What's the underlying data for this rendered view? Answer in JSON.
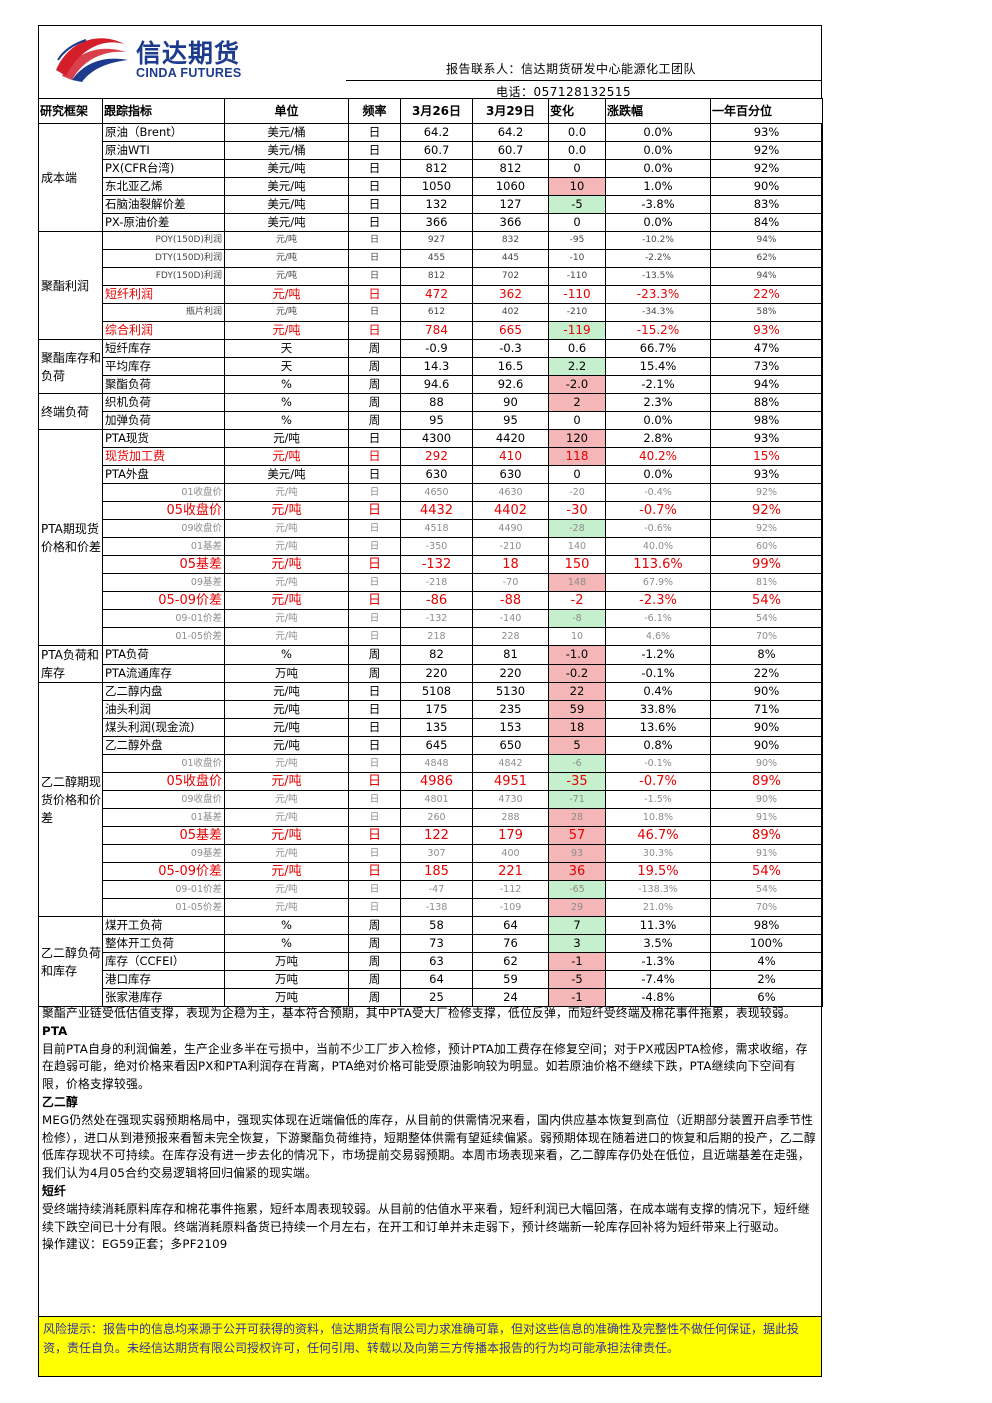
{
  "header": {
    "logo_cn": "信达期货",
    "logo_en": "CINDA FUTURES",
    "contact": "报告联系人：信达期货研发中心能源化工团队",
    "phone": "电话：057128132515"
  },
  "table": {
    "columns": [
      "研究框架",
      "跟踪指标",
      "单位",
      "频率",
      "3月26日",
      "3月29日",
      "变化",
      "涨跌幅",
      "一年百分位"
    ],
    "groups": [
      {
        "category": "成本端",
        "rows": [
          {
            "name": "原油（Brent）",
            "unit": "美元/桶",
            "freq": "日",
            "v1": "64.2",
            "v2": "64.2",
            "chg": "0.0",
            "pct": "0.0%",
            "rank": "93%",
            "style": "n",
            "chg_color": ""
          },
          {
            "name": "原油WTI",
            "unit": "美元/桶",
            "freq": "日",
            "v1": "60.7",
            "v2": "60.7",
            "chg": "0.0",
            "pct": "0.0%",
            "rank": "92%",
            "style": "n",
            "chg_color": ""
          },
          {
            "name": "PX(CFR台湾)",
            "unit": "美元/吨",
            "freq": "日",
            "v1": "812",
            "v2": "812",
            "chg": "0",
            "pct": "0.0%",
            "rank": "92%",
            "style": "n",
            "chg_color": ""
          },
          {
            "name": "东北亚乙烯",
            "unit": "美元/吨",
            "freq": "日",
            "v1": "1050",
            "v2": "1060",
            "chg": "10",
            "pct": "1.0%",
            "rank": "90%",
            "style": "n",
            "chg_color": "pos"
          },
          {
            "name": "石脑油裂解价差",
            "unit": "美元/吨",
            "freq": "日",
            "v1": "132",
            "v2": "127",
            "chg": "-5",
            "pct": "-3.8%",
            "rank": "83%",
            "style": "n",
            "chg_color": "neg"
          },
          {
            "name": "PX-原油价差",
            "unit": "美元/吨",
            "freq": "日",
            "v1": "366",
            "v2": "366",
            "chg": "0",
            "pct": "0.0%",
            "rank": "84%",
            "style": "n",
            "chg_color": ""
          }
        ]
      },
      {
        "category": "聚酯利润",
        "rows": [
          {
            "name": "POY(150D)利润",
            "unit": "元/吨",
            "freq": "日",
            "v1": "927",
            "v2": "832",
            "chg": "-95",
            "pct": "-10.2%",
            "rank": "94%",
            "style": "sm",
            "chg_color": "",
            "align": "r"
          },
          {
            "name": "DTY(150D)利润",
            "unit": "元/吨",
            "freq": "日",
            "v1": "455",
            "v2": "445",
            "chg": "-10",
            "pct": "-2.2%",
            "rank": "62%",
            "style": "sm",
            "chg_color": "",
            "align": "r"
          },
          {
            "name": "FDY(150D)利润",
            "unit": "元/吨",
            "freq": "日",
            "v1": "812",
            "v2": "702",
            "chg": "-110",
            "pct": "-13.5%",
            "rank": "94%",
            "style": "sm",
            "chg_color": "",
            "align": "r"
          },
          {
            "name": "短纤利润",
            "unit": "元/吨",
            "freq": "日",
            "v1": "472",
            "v2": "362",
            "chg": "-110",
            "pct": "-23.3%",
            "rank": "22%",
            "style": "rd",
            "chg_color": ""
          },
          {
            "name": "瓶片利润",
            "unit": "元/吨",
            "freq": "日",
            "v1": "612",
            "v2": "402",
            "chg": "-210",
            "pct": "-34.3%",
            "rank": "58%",
            "style": "sm",
            "chg_color": "",
            "align": "r"
          },
          {
            "name": "综合利润",
            "unit": "元/吨",
            "freq": "日",
            "v1": "784",
            "v2": "665",
            "chg": "-119",
            "pct": "-15.2%",
            "rank": "93%",
            "style": "rd",
            "chg_color": "neg"
          }
        ]
      },
      {
        "category": "聚酯库存和负荷",
        "rows": [
          {
            "name": "短纤库存",
            "unit": "天",
            "freq": "周",
            "v1": "-0.9",
            "v2": "-0.3",
            "chg": "0.6",
            "pct": "66.7%",
            "rank": "47%",
            "style": "n",
            "chg_color": ""
          },
          {
            "name": "平均库存",
            "unit": "天",
            "freq": "周",
            "v1": "14.3",
            "v2": "16.5",
            "chg": "2.2",
            "pct": "15.4%",
            "rank": "73%",
            "style": "n",
            "chg_color": "neg"
          },
          {
            "name": "聚酯负荷",
            "unit": "%",
            "freq": "周",
            "v1": "94.6",
            "v2": "92.6",
            "chg": "-2.0",
            "pct": "-2.1%",
            "rank": "94%",
            "style": "n",
            "chg_color": "pos"
          }
        ]
      },
      {
        "category": "终端负荷",
        "rows": [
          {
            "name": "织机负荷",
            "unit": "%",
            "freq": "周",
            "v1": "88",
            "v2": "90",
            "chg": "2",
            "pct": "2.3%",
            "rank": "88%",
            "style": "n",
            "chg_color": "pos"
          },
          {
            "name": "加弹负荷",
            "unit": "%",
            "freq": "周",
            "v1": "95",
            "v2": "95",
            "chg": "0",
            "pct": "0.0%",
            "rank": "98%",
            "style": "n",
            "chg_color": ""
          }
        ]
      },
      {
        "category": "PTA期现货价格和价差",
        "rows": [
          {
            "name": "PTA现货",
            "unit": "元/吨",
            "freq": "日",
            "v1": "4300",
            "v2": "4420",
            "chg": "120",
            "pct": "2.8%",
            "rank": "93%",
            "style": "n",
            "chg_color": "pos"
          },
          {
            "name": "现货加工费",
            "unit": "元/吨",
            "freq": "日",
            "v1": "292",
            "v2": "410",
            "chg": "118",
            "pct": "40.2%",
            "rank": "15%",
            "style": "rd",
            "chg_color": "pos"
          },
          {
            "name": "PTA外盘",
            "unit": "美元/吨",
            "freq": "日",
            "v1": "630",
            "v2": "630",
            "chg": "0",
            "pct": "0.0%",
            "rank": "93%",
            "style": "n",
            "chg_color": ""
          },
          {
            "name": "01收盘价",
            "unit": "元/吨",
            "freq": "日",
            "v1": "4650",
            "v2": "4630",
            "chg": "-20",
            "pct": "-0.4%",
            "rank": "92%",
            "style": "gy",
            "chg_color": "",
            "align": "r"
          },
          {
            "name": "05收盘价",
            "unit": "元/吨",
            "freq": "日",
            "v1": "4432",
            "v2": "4402",
            "chg": "-30",
            "pct": "-0.7%",
            "rank": "92%",
            "style": "rb",
            "chg_color": "",
            "align": "r"
          },
          {
            "name": "09收盘价",
            "unit": "元/吨",
            "freq": "日",
            "v1": "4518",
            "v2": "4490",
            "chg": "-28",
            "pct": "-0.6%",
            "rank": "92%",
            "style": "gy",
            "chg_color": "neg",
            "align": "r"
          },
          {
            "name": "01基差",
            "unit": "元/吨",
            "freq": "日",
            "v1": "-350",
            "v2": "-210",
            "chg": "140",
            "pct": "40.0%",
            "rank": "60%",
            "style": "gy",
            "chg_color": "",
            "align": "r"
          },
          {
            "name": "05基差",
            "unit": "元/吨",
            "freq": "日",
            "v1": "-132",
            "v2": "18",
            "chg": "150",
            "pct": "113.6%",
            "rank": "99%",
            "style": "rb",
            "chg_color": "",
            "align": "r"
          },
          {
            "name": "09基差",
            "unit": "元/吨",
            "freq": "日",
            "v1": "-218",
            "v2": "-70",
            "chg": "148",
            "pct": "67.9%",
            "rank": "81%",
            "style": "gy",
            "chg_color": "pos",
            "align": "r"
          },
          {
            "name": "05-09价差",
            "unit": "元/吨",
            "freq": "日",
            "v1": "-86",
            "v2": "-88",
            "chg": "-2",
            "pct": "-2.3%",
            "rank": "54%",
            "style": "rb",
            "chg_color": "",
            "align": "r"
          },
          {
            "name": "09-01价差",
            "unit": "元/吨",
            "freq": "日",
            "v1": "-132",
            "v2": "-140",
            "chg": "-8",
            "pct": "-6.1%",
            "rank": "54%",
            "style": "gy",
            "chg_color": "neg",
            "align": "r"
          },
          {
            "name": "01-05价差",
            "unit": "元/吨",
            "freq": "日",
            "v1": "218",
            "v2": "228",
            "chg": "10",
            "pct": "4.6%",
            "rank": "70%",
            "style": "gy",
            "chg_color": "",
            "align": "r"
          }
        ]
      },
      {
        "category": "PTA负荷和库存",
        "rows": [
          {
            "name": "PTA负荷",
            "unit": "%",
            "freq": "周",
            "v1": "82",
            "v2": "81",
            "chg": "-1.0",
            "pct": "-1.2%",
            "rank": "8%",
            "style": "n",
            "chg_color": "pos"
          },
          {
            "name": "PTA流通库存",
            "unit": "万吨",
            "freq": "周",
            "v1": "220",
            "v2": "220",
            "chg": "-0.2",
            "pct": "-0.1%",
            "rank": "22%",
            "style": "n",
            "chg_color": "pos"
          }
        ]
      },
      {
        "category": "乙二醇期现货价格和价差",
        "rows": [
          {
            "name": "乙二醇内盘",
            "unit": "元/吨",
            "freq": "日",
            "v1": "5108",
            "v2": "5130",
            "chg": "22",
            "pct": "0.4%",
            "rank": "90%",
            "style": "n",
            "chg_color": "pos"
          },
          {
            "name": "油头利润",
            "unit": "元/吨",
            "freq": "日",
            "v1": "175",
            "v2": "235",
            "chg": "59",
            "pct": "33.8%",
            "rank": "71%",
            "style": "n",
            "chg_color": "pos"
          },
          {
            "name": "煤头利润(现金流)",
            "unit": "元/吨",
            "freq": "日",
            "v1": "135",
            "v2": "153",
            "chg": "18",
            "pct": "13.6%",
            "rank": "90%",
            "style": "n",
            "chg_color": "pos"
          },
          {
            "name": "乙二醇外盘",
            "unit": "元/吨",
            "freq": "日",
            "v1": "645",
            "v2": "650",
            "chg": "5",
            "pct": "0.8%",
            "rank": "90%",
            "style": "n",
            "chg_color": "pos"
          },
          {
            "name": "01收盘价",
            "unit": "元/吨",
            "freq": "日",
            "v1": "4848",
            "v2": "4842",
            "chg": "-6",
            "pct": "-0.1%",
            "rank": "90%",
            "style": "gy",
            "chg_color": "neg",
            "align": "r"
          },
          {
            "name": "05收盘价",
            "unit": "元/吨",
            "freq": "日",
            "v1": "4986",
            "v2": "4951",
            "chg": "-35",
            "pct": "-0.7%",
            "rank": "89%",
            "style": "rb",
            "chg_color": "neg",
            "align": "r"
          },
          {
            "name": "09收盘价",
            "unit": "元/吨",
            "freq": "日",
            "v1": "4801",
            "v2": "4730",
            "chg": "-71",
            "pct": "-1.5%",
            "rank": "90%",
            "style": "gy",
            "chg_color": "neg",
            "align": "r"
          },
          {
            "name": "01基差",
            "unit": "元/吨",
            "freq": "日",
            "v1": "260",
            "v2": "288",
            "chg": "28",
            "pct": "10.8%",
            "rank": "91%",
            "style": "gy",
            "chg_color": "pos",
            "align": "r"
          },
          {
            "name": "05基差",
            "unit": "元/吨",
            "freq": "日",
            "v1": "122",
            "v2": "179",
            "chg": "57",
            "pct": "46.7%",
            "rank": "89%",
            "style": "rb",
            "chg_color": "pos",
            "align": "r"
          },
          {
            "name": "09基差",
            "unit": "元/吨",
            "freq": "日",
            "v1": "307",
            "v2": "400",
            "chg": "93",
            "pct": "30.3%",
            "rank": "91%",
            "style": "gy",
            "chg_color": "pos",
            "align": "r"
          },
          {
            "name": "05-09价差",
            "unit": "元/吨",
            "freq": "日",
            "v1": "185",
            "v2": "221",
            "chg": "36",
            "pct": "19.5%",
            "rank": "54%",
            "style": "rb",
            "chg_color": "pos",
            "align": "r"
          },
          {
            "name": "09-01价差",
            "unit": "元/吨",
            "freq": "日",
            "v1": "-47",
            "v2": "-112",
            "chg": "-65",
            "pct": "-138.3%",
            "rank": "54%",
            "style": "gy",
            "chg_color": "neg",
            "align": "r"
          },
          {
            "name": "01-05价差",
            "unit": "元/吨",
            "freq": "日",
            "v1": "-138",
            "v2": "-109",
            "chg": "29",
            "pct": "21.0%",
            "rank": "70%",
            "style": "gy",
            "chg_color": "pos",
            "align": "r"
          }
        ]
      },
      {
        "category": "乙二醇负荷和库存",
        "rows": [
          {
            "name": "煤开工负荷",
            "unit": "%",
            "freq": "周",
            "v1": "58",
            "v2": "64",
            "chg": "7",
            "pct": "11.3%",
            "rank": "98%",
            "style": "n",
            "chg_color": "neg"
          },
          {
            "name": "整体开工负荷",
            "unit": "%",
            "freq": "周",
            "v1": "73",
            "v2": "76",
            "chg": "3",
            "pct": "3.5%",
            "rank": "100%",
            "style": "n",
            "chg_color": "neg"
          },
          {
            "name": "库存（CCFEI）",
            "unit": "万吨",
            "freq": "周",
            "v1": "63",
            "v2": "62",
            "chg": "-1",
            "pct": "-1.3%",
            "rank": "4%",
            "style": "n",
            "chg_color": "pos"
          },
          {
            "name": "港口库存",
            "unit": "万吨",
            "freq": "周",
            "v1": "64",
            "v2": "59",
            "chg": "-5",
            "pct": "-7.4%",
            "rank": "2%",
            "style": "n",
            "chg_color": "pos"
          },
          {
            "name": "张家港库存",
            "unit": "万吨",
            "freq": "周",
            "v1": "25",
            "v2": "24",
            "chg": "-1",
            "pct": "-4.8%",
            "rank": "6%",
            "style": "n",
            "chg_color": "pos"
          }
        ]
      }
    ]
  },
  "commentary": {
    "intro": "聚酯产业链受低估值支撑，表现为企稳为主，基本符合预期，其中PTA受大厂检修支撑，低位反弹，而短纤受终端及棉花事件拖累，表现较弱。",
    "pta_title": "PTA",
    "pta_text": "目前PTA自身的利润偏差，生产企业多半在亏损中，当前不少工厂步入检修，预计PTA加工费存在修复空间；对于PX戒因PTA检修，需求收缩，存在趋弱可能，绝对价格来看因PX和PTA利润存在背离，PTA绝对价格可能受原油影响较为明显。如若原油价格不继续下跌，PTA继续向下空间有限，价格支撑较强。",
    "meg_title": "乙二醇",
    "meg_text": "MEG仍然处在强现实弱预期格局中，强现实体现在近端偏低的库存，从目前的供需情况来看，国内供应基本恢复到高位（近期部分装置开启季节性检修），进口从到港预报来看暂未完全恢复，下游聚酯负荷维持，短期整体供需有望延续偏紧。弱预期体现在随着进口的恢复和后期的投产，乙二醇低库存现状不可持续。在库存没有进一步去化的情况下，市场提前交易弱预期。本周市场表现来看，乙二醇库存仍处在低位，且近端基差在走强，我们认为4月05合约交易逻辑将回归偏紧的现实端。",
    "psf_title": "短纤",
    "psf_text": "受终端持续消耗原料库存和棉花事件拖累，短纤本周表现较弱。从目前的估值水平来看，短纤利润已大幅回落，在成本端有支撑的情况下，短纤继续下跌空间已十分有限。终端消耗原料备货已持续一个月左右，在开工和订单并未走弱下，预计终端新一轮库存回补将为短纤带来上行驱动。",
    "advice": "操作建议：EG59正套；多PF2109"
  },
  "risk": "风险提示：报告中的信息均来源于公开可获得的资料，信达期货有限公司力求准确可靠，但对这些信息的准确性及完整性不做任何保证，据此投资，责任自负。未经信达期货有限公司授权许可，任何引用、转载以及向第三方传播本报告的行为均可能承担法律责任。"
}
